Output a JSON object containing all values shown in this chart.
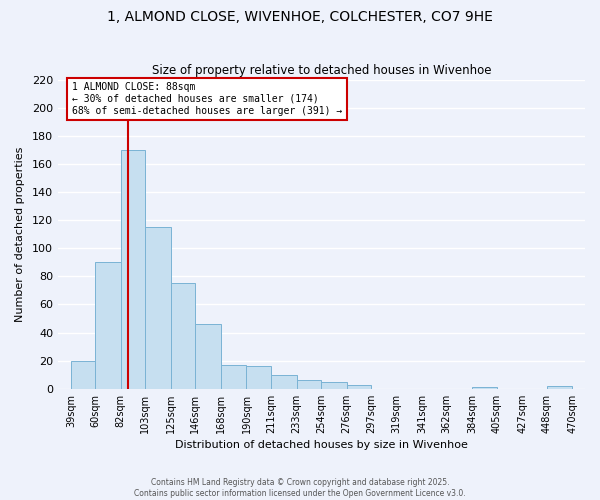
{
  "title": "1, ALMOND CLOSE, WIVENHOE, COLCHESTER, CO7 9HE",
  "subtitle": "Size of property relative to detached houses in Wivenhoe",
  "xlabel": "Distribution of detached houses by size in Wivenhoe",
  "ylabel": "Number of detached properties",
  "bar_values": [
    20,
    90,
    170,
    115,
    75,
    46,
    17,
    16,
    10,
    6,
    5,
    3,
    0,
    0,
    0,
    0,
    1,
    0,
    0,
    2
  ],
  "bin_labels": [
    "39sqm",
    "60sqm",
    "82sqm",
    "103sqm",
    "125sqm",
    "146sqm",
    "168sqm",
    "190sqm",
    "211sqm",
    "233sqm",
    "254sqm",
    "276sqm",
    "297sqm",
    "319sqm",
    "341sqm",
    "362sqm",
    "384sqm",
    "405sqm",
    "427sqm",
    "448sqm",
    "470sqm"
  ],
  "bar_color": "#c6dff0",
  "bar_edgecolor": "#7ab3d4",
  "bar_left_edges": [
    39,
    60,
    82,
    103,
    125,
    146,
    168,
    190,
    211,
    233,
    254,
    276,
    297,
    319,
    341,
    362,
    384,
    405,
    427,
    448
  ],
  "bin_widths": [
    21,
    22,
    21,
    22,
    21,
    22,
    22,
    21,
    22,
    21,
    22,
    21,
    22,
    22,
    21,
    22,
    21,
    22,
    21,
    22
  ],
  "ylim": [
    0,
    220
  ],
  "yticks": [
    0,
    20,
    40,
    60,
    80,
    100,
    120,
    140,
    160,
    180,
    200,
    220
  ],
  "xlim": [
    28,
    481
  ],
  "vline_x": 88,
  "vline_color": "#cc0000",
  "annotation_title": "1 ALMOND CLOSE: 88sqm",
  "annotation_line1": "← 30% of detached houses are smaller (174)",
  "annotation_line2": "68% of semi-detached houses are larger (391) →",
  "annotation_box_facecolor": "#ffffff",
  "annotation_box_edgecolor": "#cc0000",
  "footer1": "Contains HM Land Registry data © Crown copyright and database right 2025.",
  "footer2": "Contains public sector information licensed under the Open Government Licence v3.0.",
  "background_color": "#eef2fb",
  "grid_color": "#ffffff",
  "title_fontsize": 10,
  "axis_fontsize": 8,
  "tick_fontsize": 7
}
